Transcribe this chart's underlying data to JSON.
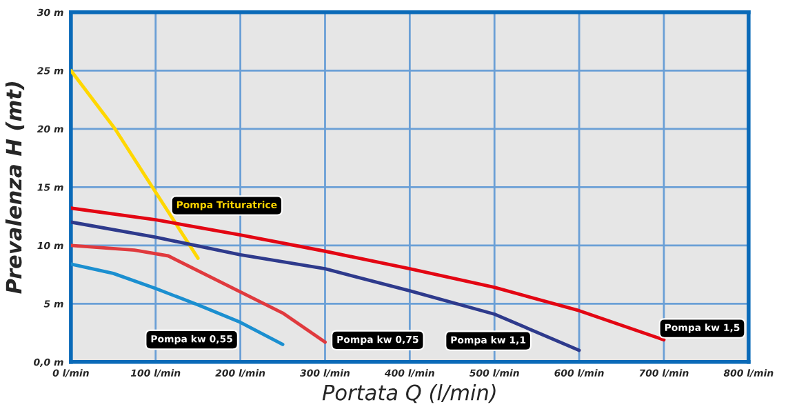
{
  "chart_data": {
    "type": "line",
    "xlabel": "Portata Q (l/min)",
    "ylabel": "Prevalenza H (mt)",
    "xlim": [
      0,
      800
    ],
    "ylim": [
      0,
      30
    ],
    "xticks": [
      {
        "value": 0,
        "label": "0 l/min"
      },
      {
        "value": 100,
        "label": "100 l/min"
      },
      {
        "value": 200,
        "label": "200 l/min"
      },
      {
        "value": 300,
        "label": "300 l/min"
      },
      {
        "value": 400,
        "label": "400 l/min"
      },
      {
        "value": 500,
        "label": "500 l/min"
      },
      {
        "value": 600,
        "label": "600 l/min"
      },
      {
        "value": 700,
        "label": "700 l/min"
      },
      {
        "value": 800,
        "label": "800 l/min"
      }
    ],
    "yticks": [
      {
        "value": 0,
        "label": "0,0 m"
      },
      {
        "value": 5,
        "label": "5 m"
      },
      {
        "value": 10,
        "label": "10 m"
      },
      {
        "value": 15,
        "label": "15 m"
      },
      {
        "value": 20,
        "label": "20 m"
      },
      {
        "value": 25,
        "label": "25 m"
      },
      {
        "value": 30,
        "label": "30 m"
      }
    ],
    "grid": true,
    "legend": false,
    "series": [
      {
        "name": "Pompa Trituratrice",
        "color": "#ffd700",
        "x": [
          0,
          52,
          150
        ],
        "values": [
          25,
          20,
          8.9
        ]
      },
      {
        "name": "Pompa kw 1,5",
        "color": "#e30613",
        "x": [
          0,
          100,
          200,
          300,
          400,
          500,
          600,
          700
        ],
        "values": [
          13.2,
          12.2,
          10.9,
          9.5,
          8.0,
          6.4,
          4.4,
          1.9
        ]
      },
      {
        "name": "Pompa kw 1,1",
        "color": "#2e3a8c",
        "x": [
          0,
          100,
          200,
          300,
          400,
          500,
          600
        ],
        "values": [
          12.0,
          10.7,
          9.2,
          8.0,
          6.1,
          4.1,
          1.0
        ]
      },
      {
        "name": "Pompa kw 0,75",
        "color": "#e03a3e",
        "x": [
          0,
          75,
          115,
          250,
          300
        ],
        "values": [
          10.0,
          9.6,
          9.1,
          4.2,
          1.7
        ]
      },
      {
        "name": "Pompa kw 0,55",
        "color": "#1b8fd0",
        "x": [
          0,
          50,
          100,
          150,
          200,
          250
        ],
        "values": [
          8.4,
          7.6,
          6.3,
          4.9,
          3.4,
          1.5
        ]
      }
    ]
  }
}
